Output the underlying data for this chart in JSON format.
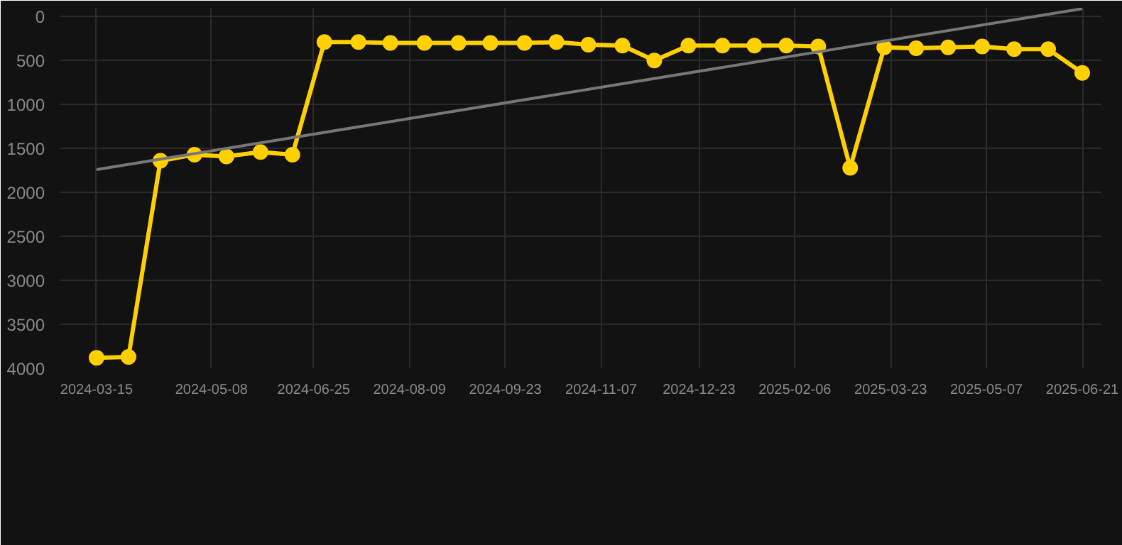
{
  "chart_data": {
    "type": "line",
    "x": [
      "2024-03-15",
      "2024-03-30",
      "2024-04-14",
      "2024-04-30",
      "2024-05-15",
      "2024-05-31",
      "2024-06-15",
      "2024-06-30",
      "2024-07-16",
      "2024-07-31",
      "2024-08-16",
      "2024-09-01",
      "2024-09-16",
      "2024-10-02",
      "2024-10-17",
      "2024-11-01",
      "2024-11-17",
      "2024-12-02",
      "2024-12-18",
      "2025-01-03",
      "2025-01-18",
      "2025-02-02",
      "2025-02-17",
      "2025-03-04",
      "2025-03-20",
      "2025-04-04",
      "2025-04-19",
      "2025-05-05",
      "2025-05-20",
      "2025-06-05",
      "2025-06-21"
    ],
    "series": [
      {
        "color": "#ffd000",
        "marker": "circle",
        "values": [
          3880,
          3870,
          1640,
          1570,
          1590,
          1540,
          1570,
          290,
          290,
          300,
          300,
          300,
          300,
          300,
          290,
          320,
          330,
          500,
          330,
          330,
          330,
          330,
          340,
          1720,
          350,
          360,
          350,
          340,
          370,
          370,
          640
        ]
      },
      {
        "type": "line",
        "color": "#777777",
        "marker": "none",
        "x": [
          "2024-03-15",
          "2025-06-21"
        ],
        "values": [
          1740,
          -90
        ]
      }
    ],
    "xlim": [
      "2024-02-27",
      "2025-06-30"
    ],
    "xticks": [
      "2024-03-15",
      "2024-05-08",
      "2024-06-25",
      "2024-08-09",
      "2024-09-23",
      "2024-11-07",
      "2024-12-23",
      "2025-02-06",
      "2025-03-23",
      "2025-05-07",
      "2025-06-21"
    ],
    "ylim": [
      4000,
      -100
    ],
    "yticks": [
      0,
      500,
      1000,
      1500,
      2000,
      2500,
      3000,
      3500,
      4000
    ],
    "grid": true
  }
}
